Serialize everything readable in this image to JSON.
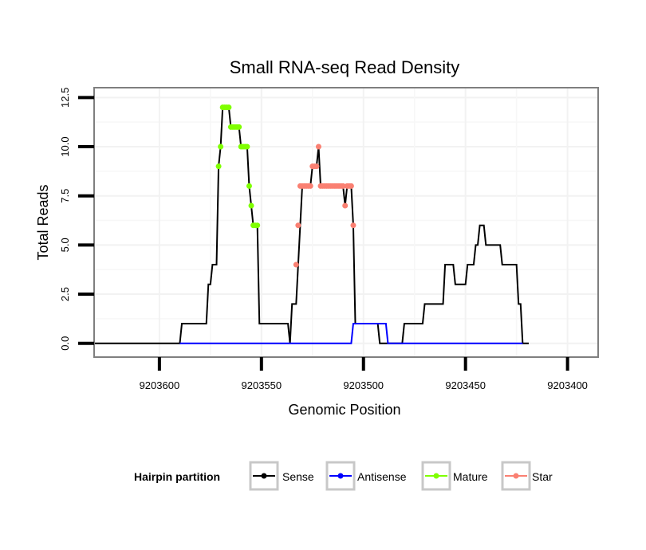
{
  "chart_data": {
    "type": "line",
    "title": "Small RNA-seq Read Density",
    "xlabel": "Genomic Position",
    "ylabel": "Total Reads",
    "x_reversed": true,
    "xlim": [
      9203632,
      9203385
    ],
    "ylim": [
      -0.7,
      13
    ],
    "x_ticks": [
      9203600,
      9203550,
      9203500,
      9203450,
      9203400
    ],
    "x_tick_labels": [
      "9203600",
      "9203550",
      "9203500",
      "9203450",
      "9203400"
    ],
    "y_ticks": [
      0,
      2.5,
      5,
      7.5,
      10,
      12.5
    ],
    "y_tick_labels": [
      "0.0",
      "2.5",
      "5.0",
      "7.5",
      "10.0",
      "12.5"
    ],
    "legend": {
      "title": "Hairpin partition",
      "position": "bottom",
      "items": [
        {
          "label": "Sense",
          "color": "#000000"
        },
        {
          "label": "Antisense",
          "color": "#0000FF"
        },
        {
          "label": "Mature",
          "color": "#7FFF00"
        },
        {
          "label": "Star",
          "color": "#FA8072"
        }
      ]
    },
    "series": [
      {
        "name": "Sense",
        "color": "#000000",
        "points": [
          [
            9203632,
            0
          ],
          [
            9203590,
            0
          ],
          [
            9203589,
            1
          ],
          [
            9203577,
            1
          ],
          [
            9203576,
            3
          ],
          [
            9203575,
            3
          ],
          [
            9203574,
            4
          ],
          [
            9203572,
            4
          ],
          [
            9203571,
            9
          ],
          [
            9203570,
            10
          ],
          [
            9203569,
            12
          ],
          [
            9203566,
            12
          ],
          [
            9203565,
            11
          ],
          [
            9203561,
            11
          ],
          [
            9203560,
            10
          ],
          [
            9203557,
            10
          ],
          [
            9203556,
            8
          ],
          [
            9203555,
            7
          ],
          [
            9203554,
            6
          ],
          [
            9203552,
            6
          ],
          [
            9203551,
            1
          ],
          [
            9203537,
            1
          ],
          [
            9203536,
            0
          ],
          [
            9203535,
            2
          ],
          [
            9203533,
            2
          ],
          [
            9203532,
            4
          ],
          [
            9203531,
            6
          ],
          [
            9203530,
            8
          ],
          [
            9203526,
            8
          ],
          [
            9203525,
            9
          ],
          [
            9203523,
            9
          ],
          [
            9203522,
            10
          ],
          [
            9203521,
            8
          ],
          [
            9203510,
            8
          ],
          [
            9203509,
            7
          ],
          [
            9203508,
            8
          ],
          [
            9203506,
            8
          ],
          [
            9203505,
            6
          ],
          [
            9203504,
            1
          ],
          [
            9203493,
            1
          ],
          [
            9203492,
            0
          ],
          [
            9203481,
            0
          ],
          [
            9203480,
            1
          ],
          [
            9203471,
            1
          ],
          [
            9203470,
            2
          ],
          [
            9203461,
            2
          ],
          [
            9203460,
            4
          ],
          [
            9203456,
            4
          ],
          [
            9203455,
            3
          ],
          [
            9203450,
            3
          ],
          [
            9203449,
            4
          ],
          [
            9203446,
            4
          ],
          [
            9203445,
            5
          ],
          [
            9203444,
            5
          ],
          [
            9203443,
            6
          ],
          [
            9203441,
            6
          ],
          [
            9203440,
            5
          ],
          [
            9203433,
            5
          ],
          [
            9203432,
            4
          ],
          [
            9203425,
            4
          ],
          [
            9203424,
            2
          ],
          [
            9203423,
            2
          ],
          [
            9203422,
            0
          ],
          [
            9203419,
            0
          ]
        ]
      },
      {
        "name": "Antisense",
        "color": "#0000FF",
        "points": [
          [
            9203590,
            0
          ],
          [
            9203506,
            0
          ],
          [
            9203505,
            1
          ],
          [
            9203489,
            1
          ],
          [
            9203488,
            0
          ],
          [
            9203422,
            0
          ]
        ]
      },
      {
        "name": "Mature",
        "color": "#7FFF00",
        "points": [
          [
            9203571,
            9
          ],
          [
            9203570,
            10
          ],
          [
            9203569,
            12
          ],
          [
            9203568,
            12
          ],
          [
            9203567,
            12
          ],
          [
            9203566,
            12
          ],
          [
            9203565,
            11
          ],
          [
            9203564,
            11
          ],
          [
            9203563,
            11
          ],
          [
            9203562,
            11
          ],
          [
            9203561,
            11
          ],
          [
            9203560,
            10
          ],
          [
            9203559,
            10
          ],
          [
            9203558,
            10
          ],
          [
            9203557,
            10
          ],
          [
            9203556,
            8
          ],
          [
            9203555,
            7
          ],
          [
            9203554,
            6
          ],
          [
            9203553,
            6
          ],
          [
            9203552,
            6
          ]
        ]
      },
      {
        "name": "Star",
        "color": "#FA8072",
        "points": [
          [
            9203533,
            4
          ],
          [
            9203532,
            6
          ],
          [
            9203531,
            8
          ],
          [
            9203530,
            8
          ],
          [
            9203529,
            8
          ],
          [
            9203528,
            8
          ],
          [
            9203527,
            8
          ],
          [
            9203526,
            8
          ],
          [
            9203525,
            9
          ],
          [
            9203524,
            9
          ],
          [
            9203523,
            9
          ],
          [
            9203522,
            10
          ],
          [
            9203521,
            8
          ],
          [
            9203520,
            8
          ],
          [
            9203519,
            8
          ],
          [
            9203518,
            8
          ],
          [
            9203517,
            8
          ],
          [
            9203516,
            8
          ],
          [
            9203515,
            8
          ],
          [
            9203514,
            8
          ],
          [
            9203513,
            8
          ],
          [
            9203512,
            8
          ],
          [
            9203511,
            8
          ],
          [
            9203510,
            8
          ],
          [
            9203509,
            7
          ],
          [
            9203508,
            8
          ],
          [
            9203507,
            8
          ],
          [
            9203506,
            8
          ],
          [
            9203505,
            6
          ]
        ]
      }
    ]
  }
}
